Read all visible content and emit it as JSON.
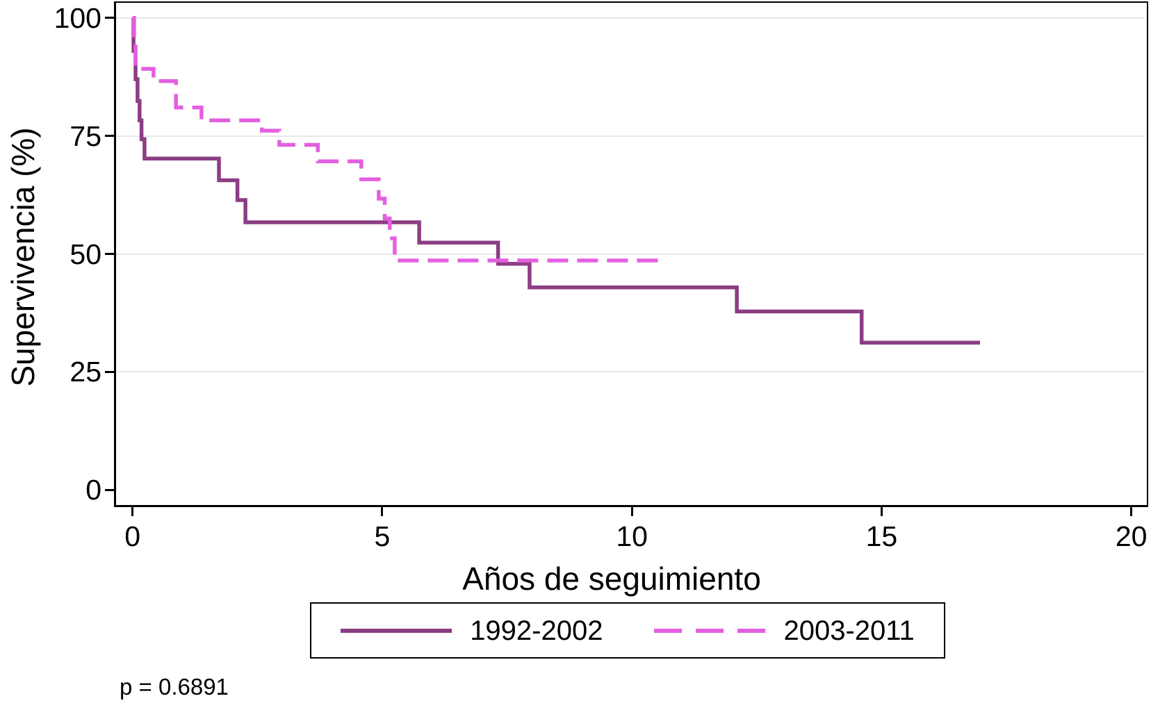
{
  "chart_data": {
    "type": "line",
    "subtype": "kaplan-meier-step",
    "xlabel": "Años de seguimiento",
    "ylabel": "Supervivencia (%)",
    "xlim": [
      0,
      20
    ],
    "ylim": [
      0,
      100
    ],
    "xticks": [
      0,
      5,
      10,
      15,
      20
    ],
    "xtick_labels": [
      "0",
      "5",
      "10",
      "15",
      "20"
    ],
    "yticks": [
      0,
      25,
      50,
      75,
      100
    ],
    "ytick_labels": [
      "0",
      "25",
      "50",
      "75",
      "100"
    ],
    "grid": "horizontal, gridlines at 25/50/75/100 only",
    "legend_position": "bottom-center-boxed",
    "p_value_label": "p = 0.6891",
    "series": [
      {
        "name": "1992-2002",
        "style": "solid",
        "color": "#8b3e84",
        "end_x": 16.97,
        "steps": [
          [
            0,
            100
          ],
          [
            0.02,
            93.0
          ],
          [
            0.06,
            87.0
          ],
          [
            0.1,
            82.4
          ],
          [
            0.14,
            78.3
          ],
          [
            0.18,
            74.3
          ],
          [
            0.24,
            70.2
          ],
          [
            1.73,
            65.6
          ],
          [
            2.1,
            61.4
          ],
          [
            2.26,
            56.7
          ],
          [
            5.74,
            52.4
          ],
          [
            7.32,
            47.9
          ],
          [
            7.95,
            42.9
          ],
          [
            12.1,
            37.8
          ],
          [
            14.6,
            31.2
          ]
        ]
      },
      {
        "name": "2003-2011",
        "style": "dashed",
        "color": "#e45fe0",
        "end_x": 10.68,
        "steps": [
          [
            0,
            100
          ],
          [
            0.03,
            94.5
          ],
          [
            0.06,
            89.2
          ],
          [
            0.42,
            86.6
          ],
          [
            0.87,
            81.0
          ],
          [
            1.38,
            78.3
          ],
          [
            2.59,
            76.1
          ],
          [
            2.94,
            73.1
          ],
          [
            3.71,
            69.6
          ],
          [
            4.58,
            65.8
          ],
          [
            4.93,
            61.7
          ],
          [
            5.05,
            57.5
          ],
          [
            5.15,
            53.3
          ],
          [
            5.25,
            48.6
          ]
        ]
      }
    ],
    "colors": {
      "grid": "#e8e8e8",
      "axis": "#000000",
      "background": "#ffffff"
    }
  }
}
